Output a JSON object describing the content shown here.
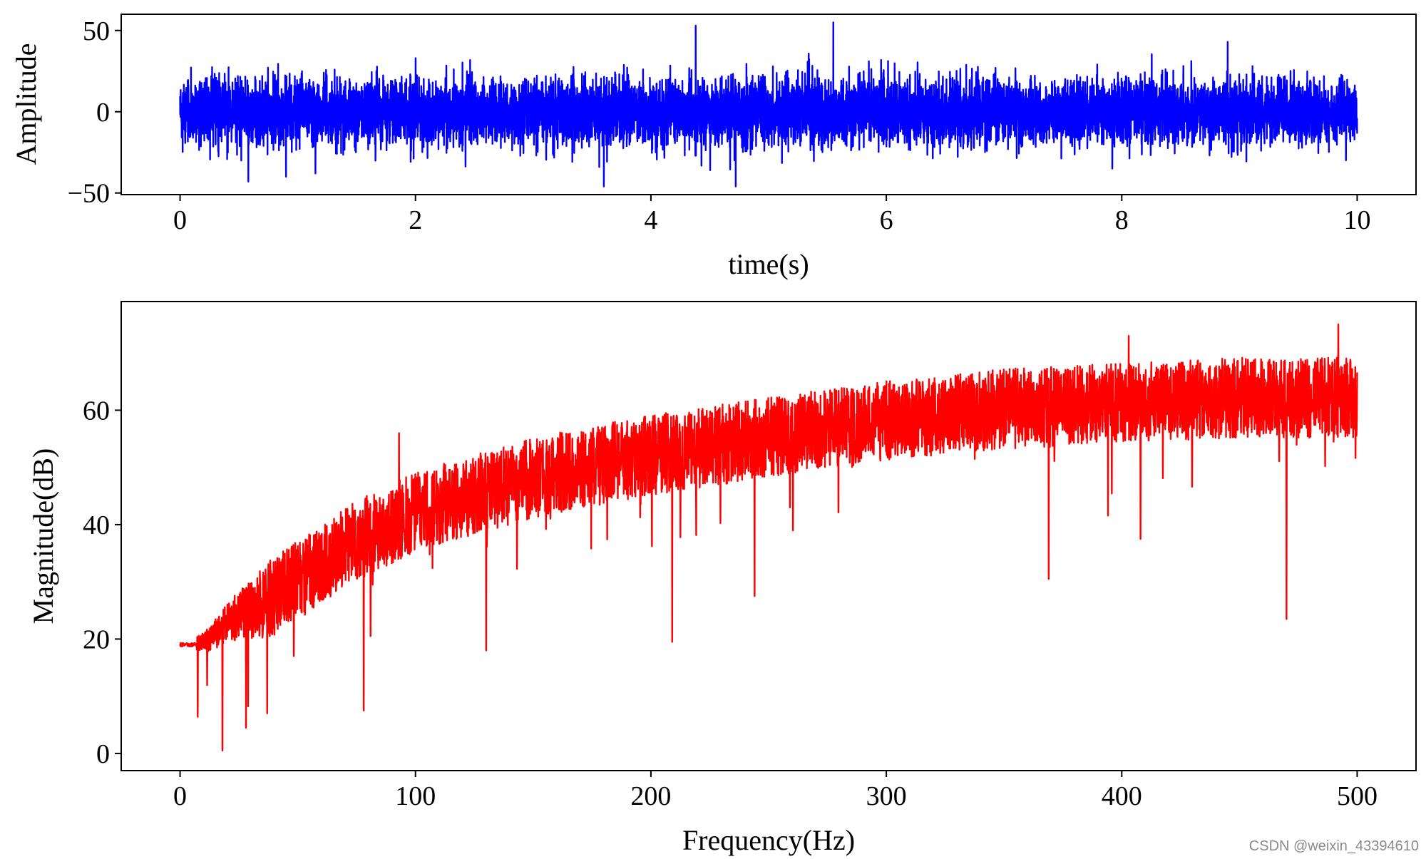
{
  "watermark": "CSDN @weixin_43394610",
  "chart_data": [
    {
      "type": "line",
      "xlabel": "time(s)",
      "ylabel": "Amplitude",
      "xlim": [
        -0.5,
        10.5
      ],
      "ylim": [
        -51,
        60
      ],
      "xticks": [
        0,
        2,
        4,
        6,
        8,
        10
      ],
      "yticks": [
        -50,
        0,
        50
      ],
      "ytick_labels": [
        "−50",
        "0",
        "50"
      ],
      "grid": false,
      "series": [
        {
          "color": "#0000ff",
          "sample_count": 10000,
          "x_range": [
            0,
            10
          ],
          "noise_std": 10,
          "typical_range": [
            -30,
            30
          ],
          "peaks": [
            {
              "x": 4.38,
              "y": 53
            },
            {
              "x": 5.55,
              "y": 55
            },
            {
              "x": 8.9,
              "y": 43
            },
            {
              "x": 3.6,
              "y": -46
            },
            {
              "x": 4.72,
              "y": -46
            },
            {
              "x": 0.58,
              "y": -43
            },
            {
              "x": 0.9,
              "y": -40
            },
            {
              "x": 1.15,
              "y": -38
            }
          ]
        }
      ]
    },
    {
      "type": "line",
      "xlabel": "Frequency(Hz)",
      "ylabel": "Magnitude(dB)",
      "xlim": [
        -25,
        525
      ],
      "ylim": [
        -3,
        79
      ],
      "xticks": [
        0,
        100,
        200,
        300,
        400,
        500
      ],
      "yticks": [
        0,
        20,
        40,
        60
      ],
      "grid": false,
      "series": [
        {
          "color": "#ff0000",
          "sample_count": 5000,
          "x_range": [
            0,
            500
          ],
          "start_value": 19,
          "envelope": [
            [
              0,
              19
            ],
            [
              10,
              20
            ],
            [
              25,
              26
            ],
            [
              50,
              33
            ],
            [
              75,
              40
            ],
            [
              100,
              45
            ],
            [
              150,
              51
            ],
            [
              200,
              55
            ],
            [
              250,
              58
            ],
            [
              300,
              61
            ],
            [
              350,
              63
            ],
            [
              400,
              64
            ],
            [
              450,
              65
            ],
            [
              500,
              65
            ]
          ],
          "dips": [
            {
              "x": 18,
              "y": 0.5
            },
            {
              "x": 28,
              "y": 4.5
            },
            {
              "x": 37,
              "y": 7
            },
            {
              "x": 78,
              "y": 7.5
            },
            {
              "x": 130,
              "y": 18
            },
            {
              "x": 209,
              "y": 19.5
            },
            {
              "x": 244,
              "y": 27.5
            },
            {
              "x": 369,
              "y": 30.5
            },
            {
              "x": 470,
              "y": 23.5
            },
            {
              "x": 408,
              "y": 37.5
            }
          ],
          "peaks": [
            {
              "x": 93,
              "y": 56
            },
            {
              "x": 492,
              "y": 75
            },
            {
              "x": 403,
              "y": 73
            }
          ]
        }
      ]
    }
  ]
}
